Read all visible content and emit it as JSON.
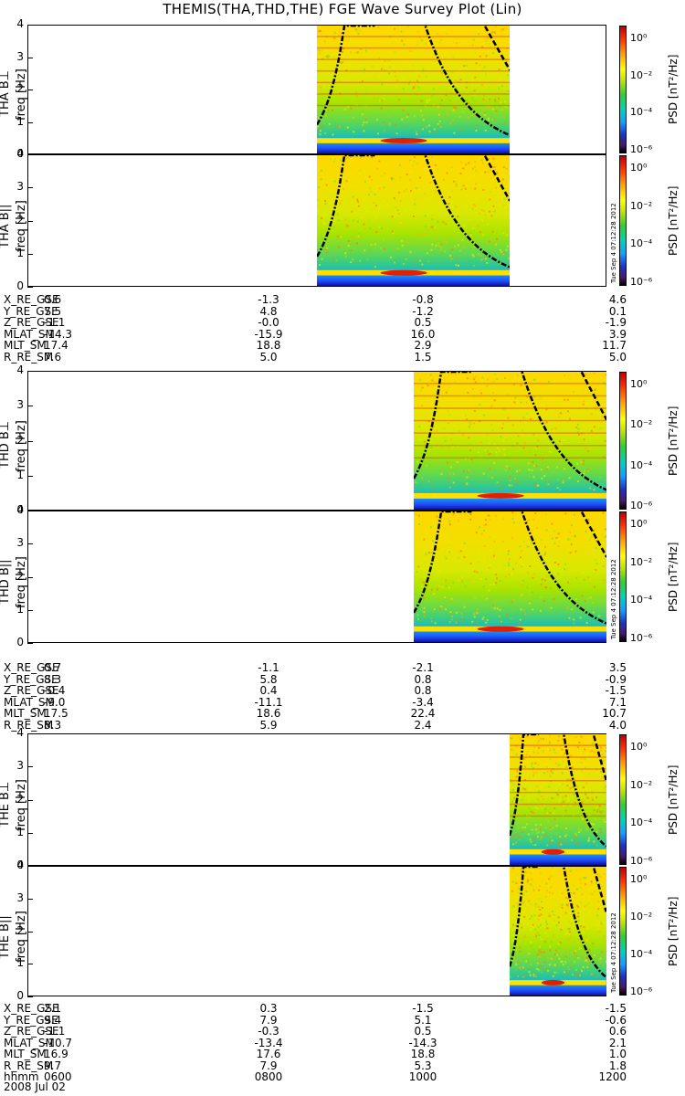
{
  "title": "THEMIS(THA,THD,THE) FGE Wave Survey Plot (Lin)",
  "colorbar": {
    "label": "PSD [nT²/Hz]",
    "ticks": [
      "10⁰",
      "10⁻²",
      "10⁻⁴",
      "10⁻⁶"
    ]
  },
  "stamp": "Tue Sep  4 07:12:28 2012",
  "freq_ticks": [
    "4",
    "3",
    "2",
    "1",
    "0"
  ],
  "chart_data": [
    {
      "type": "heatmap",
      "panel": "THA B⊥",
      "ylabel": "freq [Hz]",
      "ylim": [
        0,
        4
      ],
      "xlim": [
        "0600",
        "1200"
      ],
      "data_start": "0900",
      "data_end": "1100"
    },
    {
      "type": "heatmap",
      "panel": "THA B||",
      "ylabel": "freq [Hz]",
      "ylim": [
        0,
        4
      ],
      "xlim": [
        "0600",
        "1200"
      ],
      "data_start": "0900",
      "data_end": "1100"
    },
    {
      "type": "heatmap",
      "panel": "THD B⊥",
      "ylabel": "freq [Hz]",
      "ylim": [
        0,
        4
      ],
      "xlim": [
        "0600",
        "1200"
      ],
      "data_start": "1000",
      "data_end": "1200"
    },
    {
      "type": "heatmap",
      "panel": "THD B||",
      "ylabel": "freq [Hz]",
      "ylim": [
        0,
        4
      ],
      "xlim": [
        "0600",
        "1200"
      ],
      "data_start": "1000",
      "data_end": "1200"
    },
    {
      "type": "heatmap",
      "panel": "THE B⊥",
      "ylabel": "freq [Hz]",
      "ylim": [
        0,
        4
      ],
      "xlim": [
        "0600",
        "1200"
      ],
      "data_start": "1100",
      "data_end": "1200"
    },
    {
      "type": "heatmap",
      "panel": "THE B||",
      "ylabel": "freq [Hz]",
      "ylim": [
        0,
        4
      ],
      "xlim": [
        "0600",
        "1200"
      ],
      "data_start": "1100",
      "data_end": "1200"
    }
  ],
  "ephem": [
    {
      "rows": [
        {
          "label": "X_RE_GSE",
          "v": [
            "0.6",
            "-1.3",
            "-0.8",
            "4.6"
          ]
        },
        {
          "label": "Y_RE_GSE",
          "v": [
            "7.5",
            "4.8",
            "-1.2",
            "0.1"
          ]
        },
        {
          "label": "Z_RE_GSE",
          "v": [
            "-1.1",
            "-0.0",
            "0.5",
            "-1.9"
          ]
        },
        {
          "label": "MLAT_SM",
          "v": [
            "-14.3",
            "-15.9",
            "16.0",
            "3.9"
          ]
        },
        {
          "label": "MLT_SM",
          "v": [
            "17.4",
            "18.8",
            "2.9",
            "11.7"
          ]
        },
        {
          "label": "R_RE_SM",
          "v": [
            "7.6",
            "5.0",
            "1.5",
            "5.0"
          ]
        }
      ]
    },
    {
      "rows": [
        {
          "label": "X_RE_GSE",
          "v": [
            "0.7",
            "-1.1",
            "-2.1",
            "3.5"
          ]
        },
        {
          "label": "Y_RE_GSE",
          "v": [
            "8.3",
            "5.8",
            "0.8",
            "-0.9"
          ]
        },
        {
          "label": "Z_RE_GSE",
          "v": [
            "-0.4",
            "0.4",
            "0.8",
            "-1.5"
          ]
        },
        {
          "label": "MLAT_SM",
          "v": [
            "-9.0",
            "-11.1",
            "-3.4",
            "7.1"
          ]
        },
        {
          "label": "MLT_SM",
          "v": [
            "17.5",
            "18.6",
            "22.4",
            "10.7"
          ]
        },
        {
          "label": "R_RE_SM",
          "v": [
            "8.3",
            "5.9",
            "2.4",
            "4.0"
          ]
        }
      ]
    },
    {
      "rows": [
        {
          "label": "X_RE_GSE",
          "v": [
            "2.1",
            "0.3",
            "-1.5",
            "-1.5"
          ]
        },
        {
          "label": "Y_RE_GSE",
          "v": [
            "9.4",
            "7.9",
            "5.1",
            "-0.6"
          ]
        },
        {
          "label": "Z_RE_GSE",
          "v": [
            "-1.1",
            "-0.3",
            "0.5",
            "0.6"
          ]
        },
        {
          "label": "MLAT_SM",
          "v": [
            "-10.7",
            "-13.4",
            "-14.3",
            "2.1"
          ]
        },
        {
          "label": "MLT_SM",
          "v": [
            "16.9",
            "17.6",
            "18.8",
            "1.0"
          ]
        },
        {
          "label": "R_RE_SM",
          "v": [
            "9.7",
            "7.9",
            "5.3",
            "1.8"
          ]
        },
        {
          "label": "hhmm",
          "v": [
            "0600",
            "0800",
            "1000",
            "1200"
          ]
        }
      ]
    }
  ],
  "date": "2008 Jul 02"
}
